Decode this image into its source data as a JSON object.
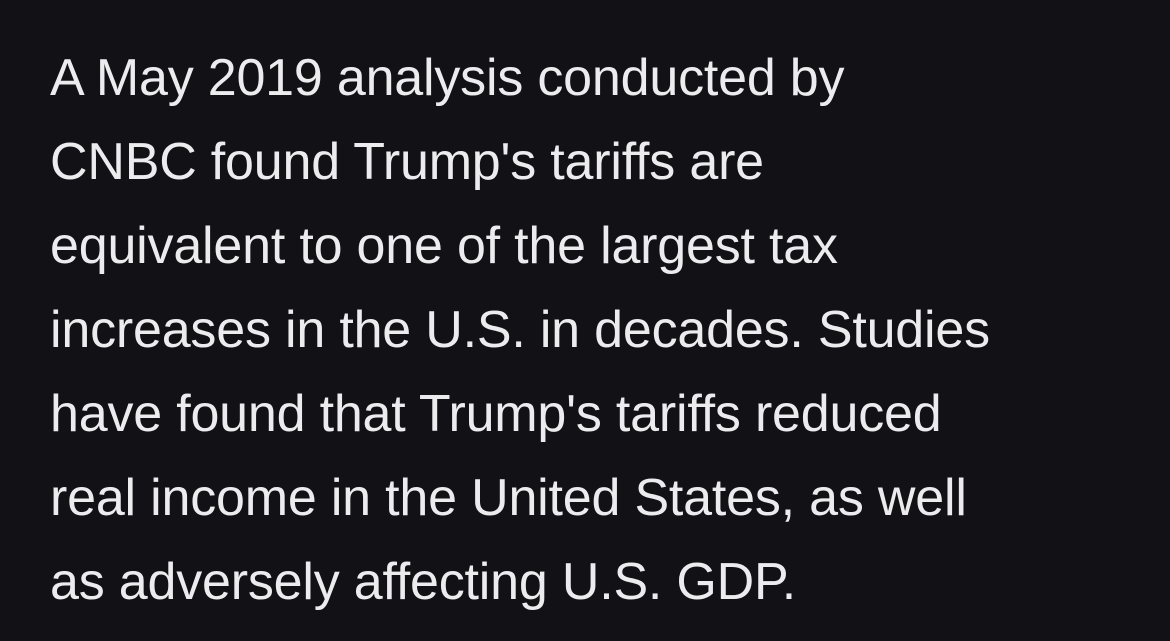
{
  "paragraph": {
    "lines": [
      "A May 2019 analysis conducted by",
      "CNBC found Trump's tariffs are",
      "equivalent to one of the largest tax",
      "increases in the U.S. in decades. Studies",
      "have found that Trump's tariffs reduced",
      "real income in the United States, as well",
      "as adversely affecting U.S. GDP."
    ]
  },
  "colors": {
    "background": "#121216",
    "text": "#ECECEF"
  }
}
